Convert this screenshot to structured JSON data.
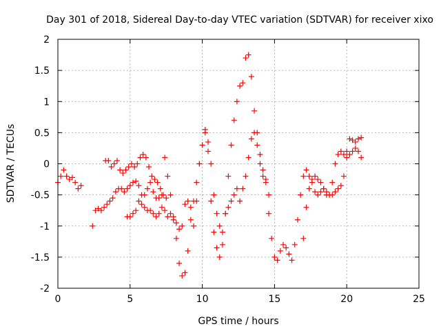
{
  "chart_data": {
    "type": "scatter",
    "title": "Day 301 of 2018, Sidereal Day-to-day VTEC variation (SDTVAR) for receiver xixo",
    "xlabel": "GPS time / hours",
    "ylabel": "SDTVAR / TECUs",
    "xlim": [
      0,
      25
    ],
    "ylim": [
      -2,
      2
    ],
    "xticks": [
      "0",
      "5",
      "10",
      "15",
      "20",
      "25"
    ],
    "yticks": [
      "-2",
      "-1.5",
      "-1",
      "-0.5",
      "0",
      "0.5",
      "1",
      "1.5",
      "2"
    ],
    "grid": true,
    "marker": "+",
    "marker_color": "#ff0000",
    "series": [
      {
        "name": "SDTVAR",
        "x": [
          0.0,
          0.2,
          0.4,
          0.6,
          0.8,
          1.0,
          1.2,
          1.4,
          1.6,
          2.4,
          2.6,
          2.8,
          3.0,
          3.2,
          3.4,
          3.6,
          3.8,
          4.0,
          4.2,
          4.4,
          4.6,
          4.8,
          5.0,
          5.2,
          5.4,
          5.6,
          5.8,
          6.0,
          6.2,
          6.4,
          6.6,
          6.8,
          7.0,
          7.2,
          3.3,
          3.5,
          3.7,
          3.9,
          4.1,
          4.3,
          4.5,
          4.7,
          4.9,
          5.1,
          5.3,
          5.5,
          5.7,
          5.9,
          6.1,
          6.3,
          6.5,
          6.7,
          6.9,
          7.1,
          7.3,
          7.5,
          4.8,
          5.0,
          5.2,
          5.4,
          5.6,
          5.8,
          6.0,
          6.2,
          6.4,
          6.6,
          6.8,
          7.0,
          7.2,
          7.4,
          7.6,
          7.8,
          8.0,
          8.2,
          8.4,
          8.6,
          8.8,
          9.0,
          9.2,
          9.4,
          9.6,
          9.8,
          10.0,
          10.2,
          10.4,
          10.6,
          10.8,
          11.0,
          11.2,
          11.4,
          11.6,
          11.8,
          12.0,
          12.2,
          12.4,
          12.6,
          12.8,
          13.0,
          13.2,
          13.4,
          13.6,
          13.8,
          14.0,
          14.2,
          14.4,
          14.6,
          7.4,
          7.6,
          7.8,
          8.0,
          8.2,
          8.4,
          8.6,
          8.8,
          9.0,
          9.2,
          9.4,
          9.6,
          9.8,
          10.0,
          10.2,
          10.4,
          10.6,
          10.8,
          11.0,
          11.2,
          11.4,
          11.6,
          11.8,
          12.0,
          12.2,
          12.4,
          12.6,
          12.8,
          13.0,
          13.2,
          13.4,
          13.6,
          13.8,
          14.0,
          14.2,
          14.4,
          14.6,
          14.8,
          15.0,
          15.2,
          15.4,
          15.6,
          15.8,
          16.0,
          16.2,
          16.4,
          16.6,
          16.8,
          17.0,
          17.2,
          17.4,
          17.6,
          17.8,
          18.0,
          18.2,
          18.4,
          18.6,
          18.8,
          19.0,
          19.2,
          19.4,
          19.6,
          19.8,
          20.0,
          20.2,
          20.4,
          20.6,
          20.8,
          21.0,
          17.0,
          17.2,
          17.4,
          17.6,
          17.8,
          18.0,
          18.2,
          18.4,
          18.6,
          18.8,
          19.0,
          19.2,
          19.4,
          19.6,
          19.8,
          20.0,
          20.2,
          20.4,
          20.6,
          20.8,
          21.0
        ],
        "y": [
          -0.3,
          -0.2,
          -0.1,
          -0.2,
          -0.25,
          -0.22,
          -0.3,
          -0.4,
          -0.35,
          -1.0,
          -0.75,
          -0.72,
          -0.75,
          -0.7,
          -0.65,
          -0.6,
          -0.55,
          -0.45,
          -0.4,
          -0.4,
          -0.45,
          -0.4,
          -0.35,
          -0.3,
          -0.28,
          -0.35,
          -0.5,
          -0.5,
          -0.4,
          -0.3,
          -0.45,
          -0.55,
          -0.55,
          -0.5,
          0.05,
          0.05,
          -0.05,
          0.0,
          0.05,
          -0.1,
          -0.15,
          -0.1,
          -0.05,
          0.0,
          -0.05,
          0.0,
          0.1,
          0.15,
          0.1,
          -0.05,
          -0.2,
          -0.25,
          -0.3,
          -0.4,
          -0.5,
          -0.55,
          -0.85,
          -0.85,
          -0.8,
          -0.75,
          -0.6,
          -0.65,
          -0.7,
          -0.75,
          -0.75,
          -0.8,
          -0.85,
          -0.8,
          -0.7,
          -0.75,
          -0.85,
          -0.8,
          -0.9,
          -1.2,
          -1.6,
          -1.8,
          -1.75,
          -1.4,
          -0.9,
          -0.6,
          -0.3,
          0.0,
          0.3,
          0.55,
          0.35,
          0.0,
          -0.5,
          -0.8,
          -1.0,
          -1.1,
          -0.8,
          -0.7,
          -0.6,
          -0.5,
          -0.4,
          -0.6,
          -0.4,
          -0.2,
          0.1,
          0.4,
          0.5,
          0.3,
          0.15,
          -0.1,
          -0.25,
          -0.5,
          0.1,
          -0.2,
          -0.5,
          -0.85,
          -0.95,
          -1.05,
          -1.0,
          -0.65,
          -0.6,
          -0.7,
          -1.0,
          -0.6,
          0.0,
          0.3,
          0.5,
          0.2,
          -0.6,
          -1.1,
          -1.35,
          -1.5,
          -1.3,
          -0.8,
          -0.2,
          0.3,
          0.7,
          1.0,
          1.25,
          1.3,
          1.7,
          1.75,
          1.4,
          0.85,
          0.5,
          0.0,
          -0.2,
          -0.3,
          -0.8,
          -1.2,
          -1.5,
          -1.55,
          -1.4,
          -1.3,
          -1.35,
          -1.45,
          -1.55,
          -1.3,
          -0.9,
          -0.5,
          -0.2,
          -0.1,
          -0.2,
          -0.3,
          -0.45,
          -0.5,
          -0.45,
          -0.4,
          -0.5,
          -0.5,
          -0.3,
          0.0,
          0.15,
          0.2,
          0.15,
          0.1,
          0.15,
          0.2,
          0.25,
          0.2,
          0.1,
          -1.2,
          -0.7,
          -0.4,
          -0.25,
          -0.2,
          -0.25,
          -0.3,
          -0.4,
          -0.45,
          -0.5,
          -0.5,
          -0.45,
          -0.4,
          -0.35,
          -0.2,
          0.2,
          0.4,
          0.38,
          0.35,
          0.4,
          0.42
        ]
      }
    ]
  }
}
